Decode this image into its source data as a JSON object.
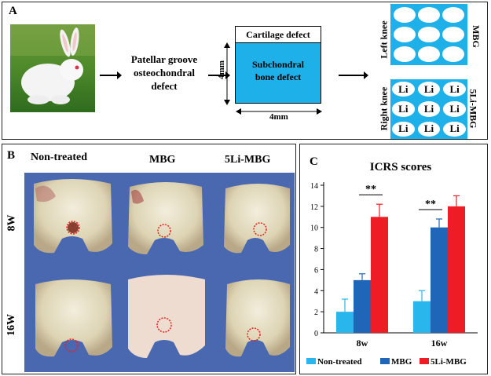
{
  "panel_a": {
    "label": "A",
    "step_text_line1": "Patellar groove",
    "step_text_line2": "osteochondral",
    "step_text_line3": "defect",
    "cartilage_label": "Cartilage defect",
    "subchondral_line1": "Subchondral",
    "subchondral_line2": "bone defect",
    "depth_label": "4mm",
    "width_label": "4mm",
    "left_knee_label": "Left knee",
    "right_knee_label": "Right knee",
    "left_group": "MBG",
    "right_group": "5Li-MBG",
    "well_text": "Li",
    "well_color": "#1eb0e8"
  },
  "panel_b": {
    "label": "B",
    "columns": [
      "Non-treated",
      "MBG",
      "5Li-MBG"
    ],
    "rows": [
      "8W",
      "16W"
    ],
    "background_color": "#4a68b0"
  },
  "chart_data": {
    "type": "bar",
    "label": "C",
    "title": "ICRS scores",
    "categories": [
      "8w",
      "16w"
    ],
    "ylim": [
      0,
      14
    ],
    "yticks": [
      0,
      2,
      4,
      6,
      8,
      10,
      12,
      14
    ],
    "series": [
      {
        "name": "Non-treated",
        "color": "#29b6ec",
        "values": [
          2,
          3
        ],
        "errors": [
          1.2,
          1.0
        ]
      },
      {
        "name": "MBG",
        "color": "#1f66b8",
        "values": [
          5,
          10
        ],
        "errors": [
          0.6,
          0.8
        ]
      },
      {
        "name": "5Li-MBG",
        "color": "#ee1c24",
        "values": [
          11,
          12
        ],
        "errors": [
          1.2,
          1.0
        ]
      }
    ],
    "significance": [
      {
        "category": "8w",
        "from": "MBG",
        "to": "5Li-MBG",
        "label": "**"
      },
      {
        "category": "16w",
        "from": "Non-treated",
        "to": "MBG",
        "label": "**"
      }
    ],
    "legend_position": "bottom"
  }
}
